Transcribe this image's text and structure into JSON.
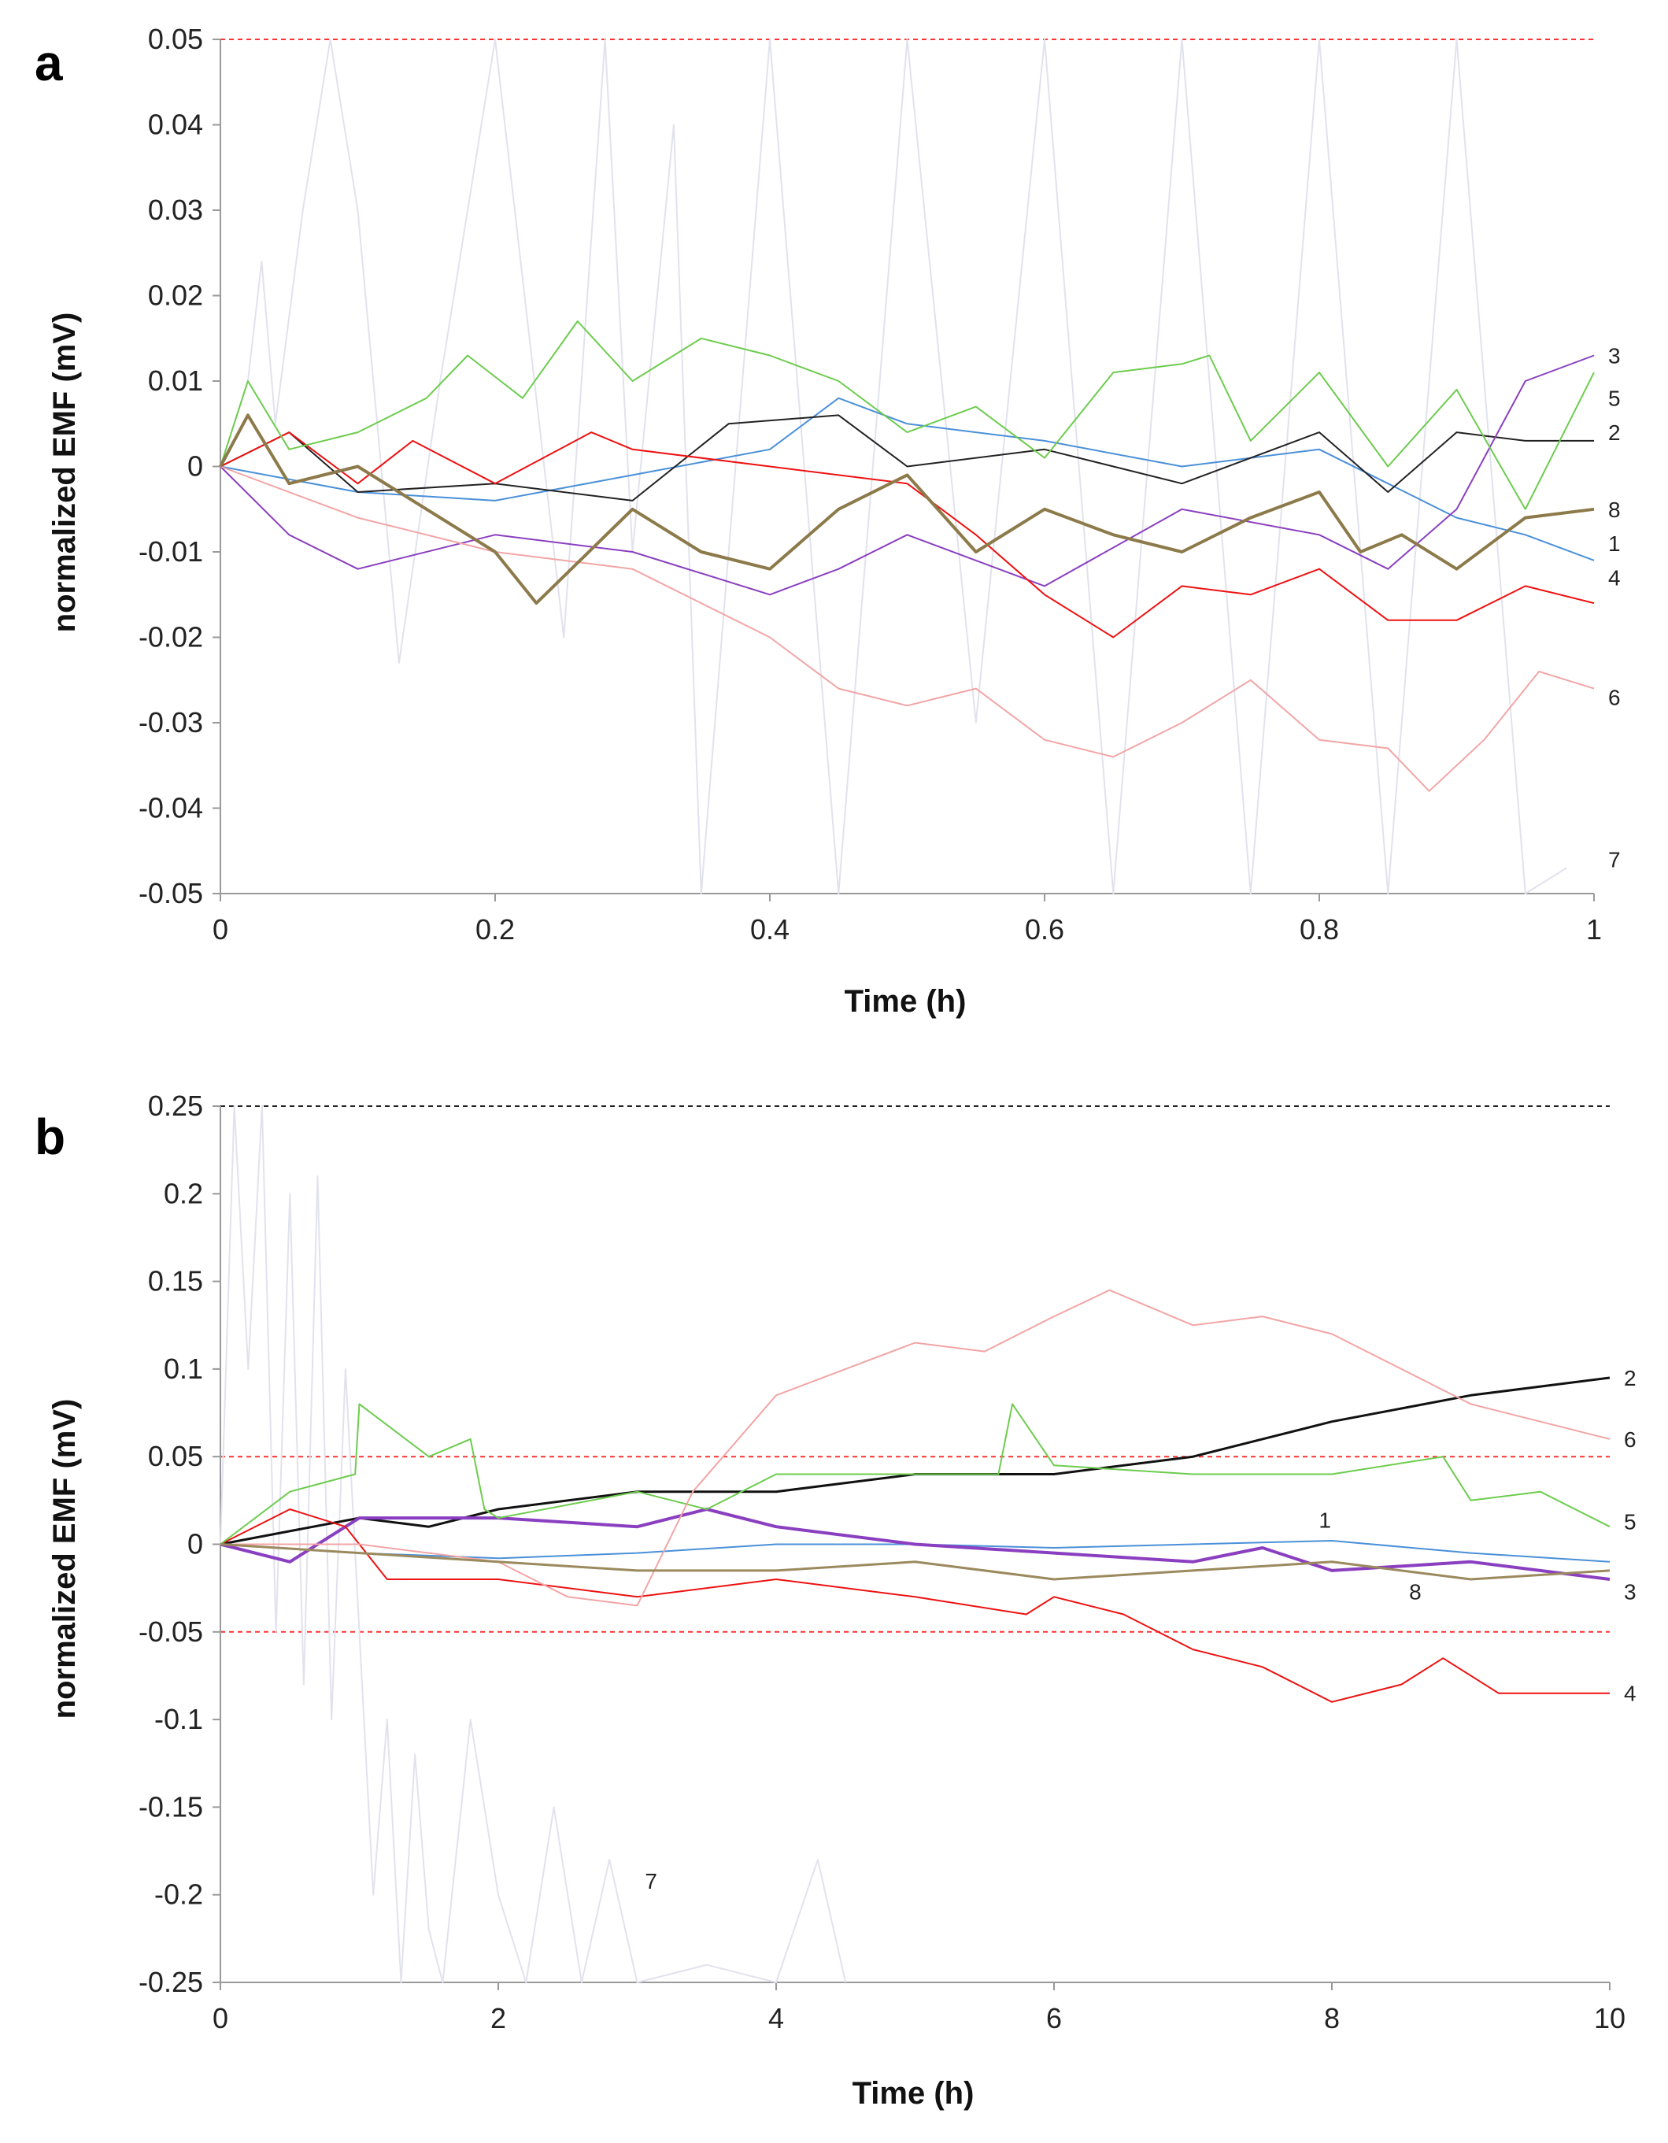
{
  "chart_data": [
    {
      "panel": "a",
      "type": "line",
      "xlabel": "Time (h)",
      "ylabel": "normalized EMF (mV)",
      "xlim": [
        0,
        1
      ],
      "ylim": [
        -0.05,
        0.05
      ],
      "x_ticks": [
        "0",
        "0.2",
        "0.4",
        "0.6",
        "0.8",
        "1"
      ],
      "y_ticks": [
        "0.05",
        "0.04",
        "0.03",
        "0.02",
        "0.01",
        "0",
        "-0.01",
        "-0.02",
        "-0.03",
        "-0.04",
        "-0.05"
      ],
      "reference_lines": [
        {
          "y": 0.05,
          "color": "#ff3333",
          "style": "dashed"
        },
        {
          "y": -0.05,
          "color": "#ff3333",
          "style": "dashed"
        }
      ],
      "series": [
        {
          "name": "1",
          "color": "#4a90d9",
          "width": 2,
          "x": [
            0,
            0.1,
            0.2,
            0.3,
            0.4,
            0.45,
            0.5,
            0.6,
            0.7,
            0.8,
            0.85,
            0.9,
            0.95,
            1.0
          ],
          "values": [
            0,
            -0.003,
            -0.004,
            -0.001,
            0.002,
            0.008,
            0.005,
            0.003,
            0.0,
            0.002,
            -0.002,
            -0.006,
            -0.008,
            -0.011
          ]
        },
        {
          "name": "2",
          "color": "#222222",
          "width": 2,
          "x": [
            0,
            0.05,
            0.1,
            0.2,
            0.3,
            0.37,
            0.45,
            0.5,
            0.6,
            0.7,
            0.8,
            0.85,
            0.9,
            0.95,
            1.0
          ],
          "values": [
            0,
            0.004,
            -0.003,
            -0.002,
            -0.004,
            0.005,
            0.006,
            0.0,
            0.002,
            -0.002,
            0.004,
            -0.003,
            0.004,
            0.003,
            0.003
          ]
        },
        {
          "name": "3",
          "color": "#8a3fc0",
          "width": 2,
          "x": [
            0,
            0.05,
            0.1,
            0.2,
            0.3,
            0.4,
            0.45,
            0.5,
            0.6,
            0.7,
            0.8,
            0.85,
            0.9,
            0.95,
            1.0
          ],
          "values": [
            0,
            -0.008,
            -0.012,
            -0.008,
            -0.01,
            -0.015,
            -0.012,
            -0.008,
            -0.014,
            -0.005,
            -0.008,
            -0.012,
            -0.005,
            0.01,
            0.013
          ]
        },
        {
          "name": "4",
          "color": "#ee1111",
          "width": 2,
          "x": [
            0,
            0.05,
            0.1,
            0.14,
            0.2,
            0.27,
            0.3,
            0.4,
            0.5,
            0.55,
            0.6,
            0.65,
            0.7,
            0.75,
            0.8,
            0.85,
            0.9,
            0.95,
            1.0
          ],
          "values": [
            0,
            0.004,
            -0.002,
            0.003,
            -0.002,
            0.004,
            0.002,
            0.0,
            -0.002,
            -0.008,
            -0.015,
            -0.02,
            -0.014,
            -0.015,
            -0.012,
            -0.018,
            -0.018,
            -0.014,
            -0.016
          ]
        },
        {
          "name": "5",
          "color": "#6dcc4e",
          "width": 2,
          "x": [
            0,
            0.02,
            0.05,
            0.1,
            0.15,
            0.18,
            0.22,
            0.26,
            0.3,
            0.35,
            0.4,
            0.45,
            0.5,
            0.55,
            0.6,
            0.65,
            0.7,
            0.72,
            0.75,
            0.8,
            0.85,
            0.9,
            0.95,
            1.0
          ],
          "values": [
            0,
            0.01,
            0.002,
            0.004,
            0.008,
            0.013,
            0.008,
            0.017,
            0.01,
            0.015,
            0.013,
            0.01,
            0.004,
            0.007,
            0.001,
            0.011,
            0.012,
            0.013,
            0.003,
            0.011,
            0.0,
            0.009,
            -0.005,
            0.011
          ]
        },
        {
          "name": "6",
          "color": "#f2a5a5",
          "width": 2,
          "x": [
            0,
            0.1,
            0.2,
            0.3,
            0.4,
            0.45,
            0.5,
            0.55,
            0.6,
            0.65,
            0.7,
            0.75,
            0.8,
            0.85,
            0.88,
            0.92,
            0.96,
            1.0
          ],
          "values": [
            0,
            -0.006,
            -0.01,
            -0.012,
            -0.02,
            -0.026,
            -0.028,
            -0.026,
            -0.032,
            -0.034,
            -0.03,
            -0.025,
            -0.032,
            -0.033,
            -0.038,
            -0.032,
            -0.024,
            -0.026
          ]
        },
        {
          "name": "7",
          "color": "#e2e2ee",
          "width": 2,
          "x": [
            0,
            0.02,
            0.03,
            0.04,
            0.06,
            0.08,
            0.1,
            0.13,
            0.16,
            0.2,
            0.25,
            0.28,
            0.3,
            0.33,
            0.35,
            0.4,
            0.45,
            0.5,
            0.55,
            0.6,
            0.65,
            0.7,
            0.75,
            0.8,
            0.85,
            0.9,
            0.95,
            0.98
          ],
          "values": [
            0,
            0.01,
            0.024,
            0.005,
            0.03,
            0.05,
            0.03,
            -0.023,
            0.01,
            0.05,
            -0.02,
            0.05,
            -0.01,
            0.04,
            -0.05,
            0.05,
            -0.05,
            0.05,
            -0.03,
            0.05,
            -0.05,
            0.05,
            -0.05,
            0.05,
            -0.05,
            0.05,
            -0.05,
            -0.047
          ]
        },
        {
          "name": "8",
          "color": "#8c7a4a",
          "width": 4,
          "x": [
            0,
            0.02,
            0.05,
            0.1,
            0.2,
            0.23,
            0.3,
            0.35,
            0.4,
            0.45,
            0.5,
            0.55,
            0.6,
            0.65,
            0.7,
            0.75,
            0.8,
            0.83,
            0.86,
            0.9,
            0.95,
            1.0
          ],
          "values": [
            0,
            0.006,
            -0.002,
            0.0,
            -0.01,
            -0.016,
            -0.005,
            -0.01,
            -0.012,
            -0.005,
            -0.001,
            -0.01,
            -0.005,
            -0.008,
            -0.01,
            -0.006,
            -0.003,
            -0.01,
            -0.008,
            -0.012,
            -0.006,
            -0.005
          ]
        }
      ],
      "series_labels": [
        {
          "name": "3",
          "x": 1.0,
          "y": 0.013
        },
        {
          "name": "5",
          "x": 1.0,
          "y": 0.008
        },
        {
          "name": "2",
          "x": 1.0,
          "y": 0.004
        },
        {
          "name": "8",
          "x": 1.0,
          "y": -0.005
        },
        {
          "name": "1",
          "x": 1.0,
          "y": -0.009
        },
        {
          "name": "4",
          "x": 1.0,
          "y": -0.013
        },
        {
          "name": "6",
          "x": 1.0,
          "y": -0.027
        },
        {
          "name": "7",
          "x": 1.0,
          "y": -0.046
        }
      ]
    },
    {
      "panel": "b",
      "type": "line",
      "xlabel": "Time (h)",
      "ylabel": "normalized EMF (mV)",
      "xlim": [
        0,
        10
      ],
      "ylim": [
        -0.25,
        0.25
      ],
      "x_ticks": [
        "0",
        "2",
        "4",
        "6",
        "8",
        "10"
      ],
      "y_ticks": [
        "0.25",
        "0.2",
        "0.15",
        "0.1",
        "0.05",
        "0",
        "-0.05",
        "-0.1",
        "-0.15",
        "-0.2",
        "-0.25"
      ],
      "reference_lines": [
        {
          "y": 0.25,
          "color": "#222222",
          "style": "dashed"
        },
        {
          "y": 0.05,
          "color": "#ff3333",
          "style": "dashed"
        },
        {
          "y": -0.05,
          "color": "#ff3333",
          "style": "dashed"
        },
        {
          "y": -0.25,
          "color": "#222222",
          "style": "dashed"
        }
      ],
      "series": [
        {
          "name": "1",
          "color": "#4a90d9",
          "width": 2,
          "x": [
            0,
            1,
            2,
            3,
            4,
            5,
            6,
            7,
            8,
            9,
            10
          ],
          "values": [
            0,
            -0.005,
            -0.008,
            -0.005,
            0.0,
            0.0,
            -0.002,
            0.0,
            0.002,
            -0.005,
            -0.01
          ]
        },
        {
          "name": "2",
          "color": "#111111",
          "width": 3,
          "x": [
            0,
            1,
            1.5,
            2,
            3,
            4,
            5,
            6,
            7,
            7.5,
            8,
            9,
            10
          ],
          "values": [
            0,
            0.015,
            0.01,
            0.02,
            0.03,
            0.03,
            0.04,
            0.04,
            0.05,
            0.06,
            0.07,
            0.085,
            0.095
          ]
        },
        {
          "name": "3",
          "color": "#8a3fc0",
          "width": 4,
          "x": [
            0,
            0.5,
            1,
            2,
            3,
            3.5,
            4,
            5,
            6,
            7,
            7.5,
            8,
            9,
            10
          ],
          "values": [
            0,
            -0.01,
            0.015,
            0.015,
            0.01,
            0.02,
            0.01,
            0.0,
            -0.005,
            -0.01,
            -0.002,
            -0.015,
            -0.01,
            -0.02
          ]
        },
        {
          "name": "4",
          "color": "#ee1111",
          "width": 2,
          "x": [
            0,
            0.5,
            0.9,
            1.2,
            2,
            3,
            4,
            5,
            5.8,
            6,
            6.5,
            7,
            7.5,
            8,
            8.5,
            8.8,
            9.2,
            10
          ],
          "values": [
            0,
            0.02,
            0.01,
            -0.02,
            -0.02,
            -0.03,
            -0.02,
            -0.03,
            -0.04,
            -0.03,
            -0.04,
            -0.06,
            -0.07,
            -0.09,
            -0.08,
            -0.065,
            -0.085,
            -0.085
          ]
        },
        {
          "name": "5",
          "color": "#6dcc4e",
          "width": 2,
          "x": [
            0,
            0.5,
            0.97,
            1.0,
            1.5,
            1.8,
            1.9,
            2,
            3,
            3.5,
            4,
            5,
            5.6,
            5.7,
            6,
            7,
            8,
            8.8,
            9,
            9.5,
            10
          ],
          "values": [
            0,
            0.03,
            0.04,
            0.08,
            0.05,
            0.06,
            0.02,
            0.015,
            0.03,
            0.02,
            0.04,
            0.04,
            0.04,
            0.08,
            0.045,
            0.04,
            0.04,
            0.05,
            0.025,
            0.03,
            0.01
          ]
        },
        {
          "name": "6",
          "color": "#f2a5a5",
          "width": 2,
          "x": [
            0,
            1,
            2,
            2.5,
            3,
            3.4,
            4,
            5,
            5.5,
            6,
            6.4,
            7,
            7.5,
            8,
            9,
            9.5,
            10
          ],
          "values": [
            0,
            0.0,
            -0.01,
            -0.03,
            -0.035,
            0.03,
            0.085,
            0.115,
            0.11,
            0.13,
            0.145,
            0.125,
            0.13,
            0.12,
            0.08,
            0.07,
            0.06
          ]
        },
        {
          "name": "7",
          "color": "#e2e2ee",
          "width": 2,
          "x": [
            0,
            0.1,
            0.2,
            0.3,
            0.4,
            0.5,
            0.6,
            0.7,
            0.8,
            0.9,
            1.0,
            1.1,
            1.2,
            1.3,
            1.4,
            1.5,
            1.6,
            1.8,
            2.0,
            2.2,
            2.4,
            2.6,
            2.8,
            3.0,
            3.5,
            4.0,
            4.3,
            4.5
          ],
          "values": [
            0,
            0.25,
            0.1,
            0.25,
            -0.05,
            0.2,
            -0.08,
            0.21,
            -0.1,
            0.1,
            -0.05,
            -0.2,
            -0.1,
            -0.25,
            -0.12,
            -0.22,
            -0.25,
            -0.1,
            -0.2,
            -0.25,
            -0.15,
            -0.25,
            -0.18,
            -0.25,
            -0.24,
            -0.25,
            -0.18,
            -0.25
          ]
        },
        {
          "name": "8",
          "color": "#9b8a5e",
          "width": 3,
          "x": [
            0,
            1,
            2,
            3,
            4,
            5,
            6,
            7,
            8,
            9,
            10
          ],
          "values": [
            0,
            -0.005,
            -0.01,
            -0.015,
            -0.015,
            -0.01,
            -0.02,
            -0.015,
            -0.01,
            -0.02,
            -0.015
          ]
        }
      ],
      "series_labels": [
        {
          "name": "2",
          "x": 10.0,
          "y": 0.095
        },
        {
          "name": "6",
          "x": 10.0,
          "y": 0.06
        },
        {
          "name": "5",
          "x": 10.0,
          "y": 0.013
        },
        {
          "name": "1",
          "x": 7.95,
          "y": 0.014
        },
        {
          "name": "8",
          "x": 8.6,
          "y": -0.027
        },
        {
          "name": "3",
          "x": 10.0,
          "y": -0.027
        },
        {
          "name": "4",
          "x": 10.0,
          "y": -0.085
        },
        {
          "name": "7",
          "x": 3.1,
          "y": -0.192
        }
      ]
    }
  ]
}
